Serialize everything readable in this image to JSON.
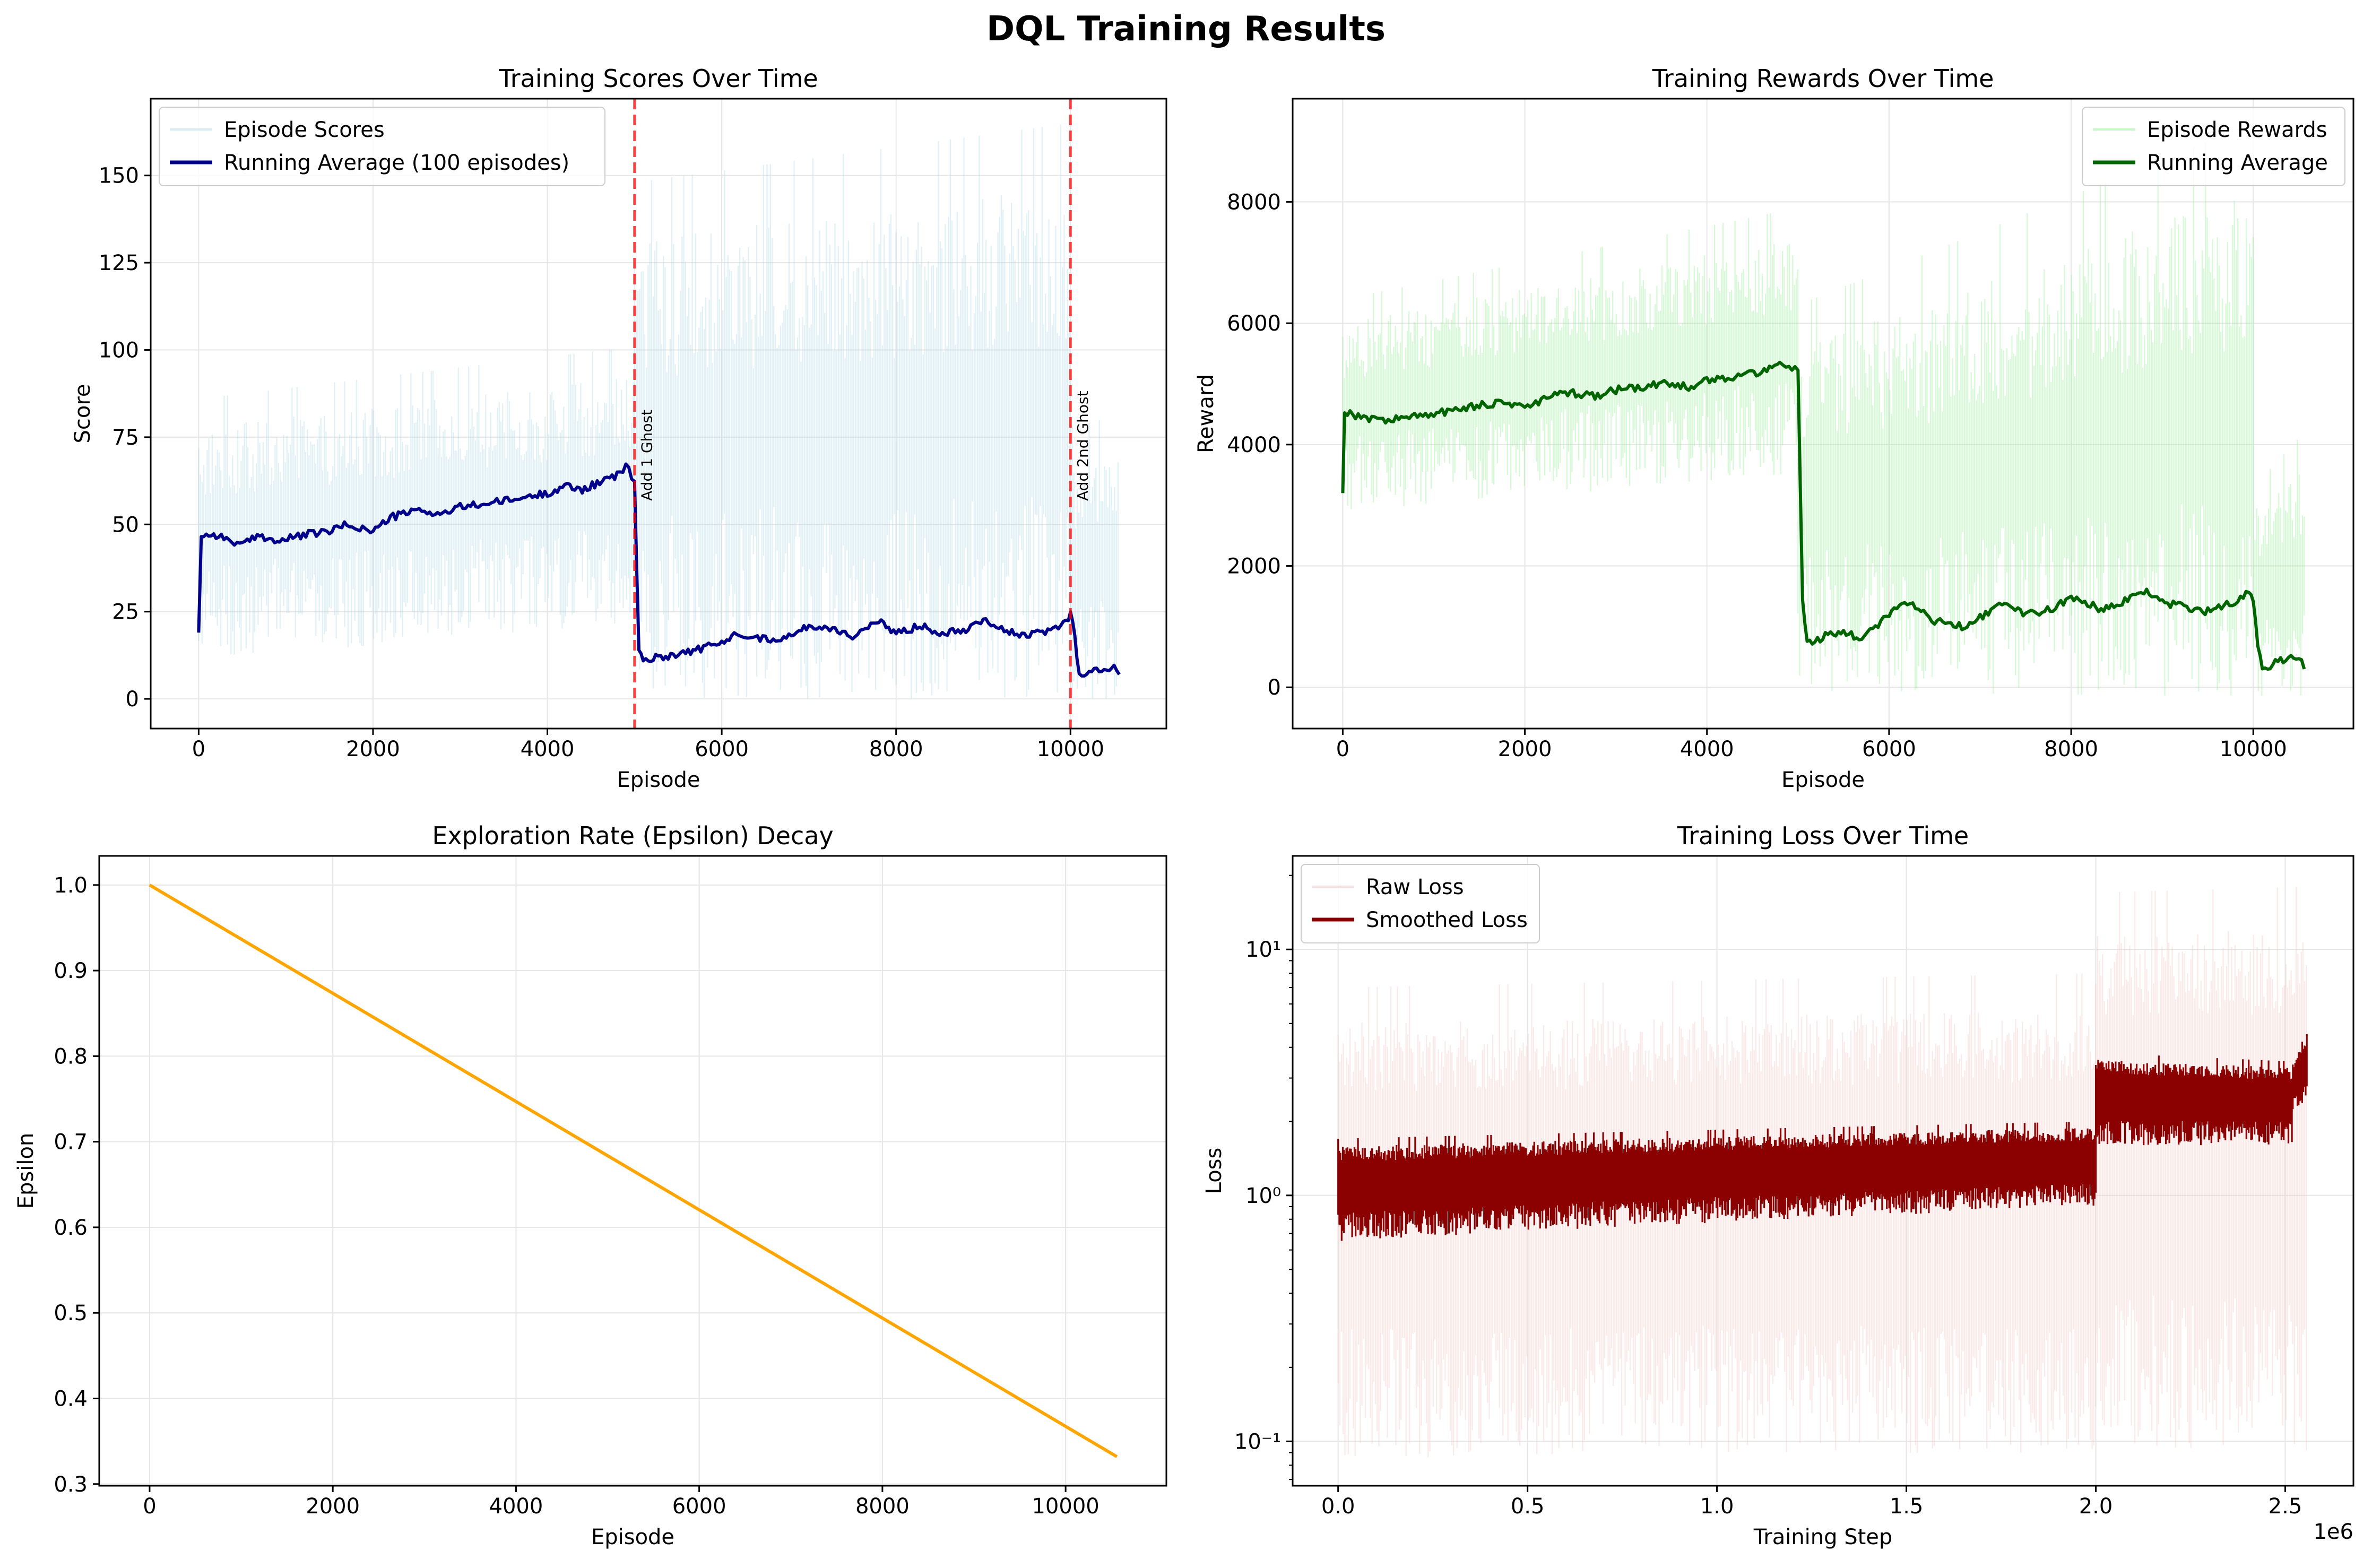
{
  "suptitle": "DQL Training Results",
  "chart_data": [
    {
      "type": "line",
      "title": "Training Scores Over Time",
      "xlabel": "Episode",
      "ylabel": "Score",
      "xlim": [
        -550,
        11100
      ],
      "ylim": [
        -8.5,
        172
      ],
      "xticks": [
        0,
        2000,
        4000,
        6000,
        8000,
        10000
      ],
      "xtick_labels": [
        "0",
        "2000",
        "4000",
        "6000",
        "8000",
        "10000"
      ],
      "yticks": [
        0,
        25,
        50,
        75,
        100,
        125,
        150
      ],
      "ytick_labels": [
        "0",
        "25",
        "50",
        "75",
        "100",
        "125",
        "150"
      ],
      "grid": true,
      "legend": "top-left",
      "series": [
        {
          "name": "Episode Scores",
          "color": "#add8e6",
          "style": "raw-band",
          "segments": [
            {
              "x0": 0,
              "x1": 5000,
              "low_start": 11,
              "low_end": 22,
              "high_start": 86,
              "high_end": 101
            },
            {
              "x0": 5000,
              "x1": 10000,
              "low_start": 0,
              "low_end": 0,
              "high_start": 148,
              "high_end": 165
            },
            {
              "x0": 10000,
              "x1": 10560,
              "low_start": 0,
              "low_end": 0,
              "high_start": 78,
              "high_end": 81
            }
          ]
        },
        {
          "name": "Running Average (100 episodes)",
          "color": "#00008b",
          "style": "line",
          "x": [
            0,
            30,
            200,
            500,
            700,
            900,
            1200,
            1500,
            1700,
            2000,
            2200,
            2500,
            2800,
            3000,
            3300,
            3600,
            3800,
            4000,
            4200,
            4400,
            4600,
            4800,
            4900,
            5000,
            5050,
            5100,
            5300,
            5500,
            5700,
            6000,
            6200,
            6500,
            6800,
            7000,
            7300,
            7500,
            7800,
            8000,
            8300,
            8500,
            8800,
            9000,
            9300,
            9500,
            9800,
            9950,
            10000,
            10050,
            10100,
            10300,
            10500,
            10560
          ],
          "y": [
            19,
            47,
            47,
            44,
            47,
            45,
            47,
            48,
            50,
            48,
            52,
            54,
            53,
            55,
            56,
            57,
            58,
            59,
            61,
            60,
            62,
            64,
            67,
            62,
            14,
            11,
            12,
            13,
            14,
            16,
            19,
            17,
            18,
            21,
            20,
            18,
            22,
            19,
            21,
            19,
            20,
            23,
            19,
            18,
            20,
            22,
            25,
            18,
            7,
            8,
            9,
            7
          ]
        }
      ],
      "vlines": [
        {
          "x": 5000,
          "label": "Add 1 Ghost",
          "color": "#ff0000"
        },
        {
          "x": 10000,
          "label": "Add 2nd Ghost",
          "color": "#ff0000"
        }
      ]
    },
    {
      "type": "line",
      "title": "Training Rewards Over Time",
      "xlabel": "Episode",
      "ylabel": "Reward",
      "xlim": [
        -550,
        11100
      ],
      "ylim": [
        -680,
        9700
      ],
      "xticks": [
        0,
        2000,
        4000,
        6000,
        8000,
        10000
      ],
      "xtick_labels": [
        "0",
        "2000",
        "4000",
        "6000",
        "8000",
        "10000"
      ],
      "yticks": [
        0,
        2000,
        4000,
        6000,
        8000
      ],
      "ytick_labels": [
        "0",
        "2000",
        "4000",
        "6000",
        "8000"
      ],
      "grid": true,
      "legend": "top-right",
      "series": [
        {
          "name": "Episode Rewards",
          "color": "#90ee90",
          "style": "raw-band",
          "segments": [
            {
              "x0": 0,
              "x1": 5000,
              "low_start": 2900,
              "low_end": 3500,
              "high_start": 6400,
              "high_end": 7900
            },
            {
              "x0": 5000,
              "x1": 10000,
              "low_start": -100,
              "low_end": -200,
              "high_start": 6300,
              "high_end": 9300
            },
            {
              "x0": 10000,
              "x1": 10560,
              "low_start": -200,
              "low_end": -200,
              "high_start": 3300,
              "high_end": 4200
            }
          ]
        },
        {
          "name": "Running Average",
          "color": "#006400",
          "style": "line",
          "x": [
            0,
            20,
            200,
            500,
            700,
            1000,
            1300,
            1500,
            1800,
            2000,
            2300,
            2500,
            2800,
            3000,
            3300,
            3500,
            3800,
            4000,
            4200,
            4400,
            4600,
            4800,
            4900,
            5000,
            5050,
            5100,
            5300,
            5500,
            5700,
            6000,
            6200,
            6500,
            6800,
            7000,
            7300,
            7500,
            7800,
            8000,
            8300,
            8500,
            8800,
            9000,
            9300,
            9500,
            9800,
            9950,
            10000,
            10050,
            10100,
            10300,
            10500,
            10560
          ],
          "y": [
            3200,
            4550,
            4450,
            4400,
            4450,
            4500,
            4600,
            4650,
            4700,
            4600,
            4800,
            4850,
            4800,
            4900,
            4950,
            5000,
            4950,
            5050,
            5100,
            5150,
            5200,
            5350,
            5300,
            5200,
            1500,
            700,
            850,
            900,
            800,
            1200,
            1400,
            1100,
            1000,
            1150,
            1400,
            1200,
            1300,
            1500,
            1300,
            1350,
            1600,
            1400,
            1300,
            1250,
            1400,
            1550,
            1450,
            700,
            300,
            450,
            500,
            300
          ]
        }
      ]
    },
    {
      "type": "line",
      "title": "Exploration Rate (Epsilon) Decay",
      "xlabel": "Episode",
      "ylabel": "Epsilon",
      "xlim": [
        -550,
        11100
      ],
      "ylim": [
        0.298,
        1.034
      ],
      "xticks": [
        0,
        2000,
        4000,
        6000,
        8000,
        10000
      ],
      "xtick_labels": [
        "0",
        "2000",
        "4000",
        "6000",
        "8000",
        "10000"
      ],
      "yticks": [
        0.3,
        0.4,
        0.5,
        0.6,
        0.7,
        0.8,
        0.9,
        1.0
      ],
      "ytick_labels": [
        "0.3",
        "0.4",
        "0.5",
        "0.6",
        "0.7",
        "0.8",
        "0.9",
        "1.0"
      ],
      "grid": true,
      "series": [
        {
          "color": "#ffa500",
          "style": "line",
          "x": [
            0,
            10560
          ],
          "y": [
            1.0,
            0.332
          ]
        }
      ]
    },
    {
      "type": "line",
      "title": "Training Loss Over Time",
      "xlabel": "Training Step",
      "ylabel": "Loss",
      "yscale": "log",
      "xlim": [
        -120000,
        2680000
      ],
      "ylim": [
        0.066,
        24
      ],
      "xticks": [
        0,
        500000,
        1000000,
        1500000,
        2000000,
        2500000
      ],
      "xtick_labels": [
        "0.0",
        "0.5",
        "1.0",
        "1.5",
        "2.0",
        "2.5"
      ],
      "x_offset_label": "1e6",
      "yticks": [
        0.1,
        1,
        10
      ],
      "ytick_labels": [
        "10⁻¹",
        "10⁰",
        "10¹"
      ],
      "grid": true,
      "legend": "top-left",
      "series": [
        {
          "name": "Raw Loss",
          "color": "#f4c2c2",
          "style": "raw-band",
          "segments": [
            {
              "x0": 0,
              "x1": 2000000,
              "low_start": 0.085,
              "low_end": 0.09,
              "high_start": 7,
              "high_end": 8
            },
            {
              "x0": 2000000,
              "x1": 2560000,
              "low_start": 0.095,
              "low_end": 0.09,
              "high_start": 17,
              "high_end": 18
            }
          ]
        },
        {
          "name": "Smoothed Loss",
          "color": "#8b0000",
          "style": "thick-band",
          "segments": [
            {
              "x0": 0,
              "x1": 2000000,
              "low_start": 0.65,
              "low_end": 0.9,
              "high_start": 1.7,
              "high_end": 2.0
            },
            {
              "x0": 2000000,
              "x1": 2520000,
              "low_start": 1.6,
              "low_end": 1.6,
              "high_start": 3.8,
              "high_end": 3.5
            },
            {
              "x0": 2520000,
              "x1": 2560000,
              "low_start": 2.2,
              "low_end": 2.4,
              "high_start": 3.6,
              "high_end": 4.6
            }
          ]
        }
      ]
    }
  ]
}
